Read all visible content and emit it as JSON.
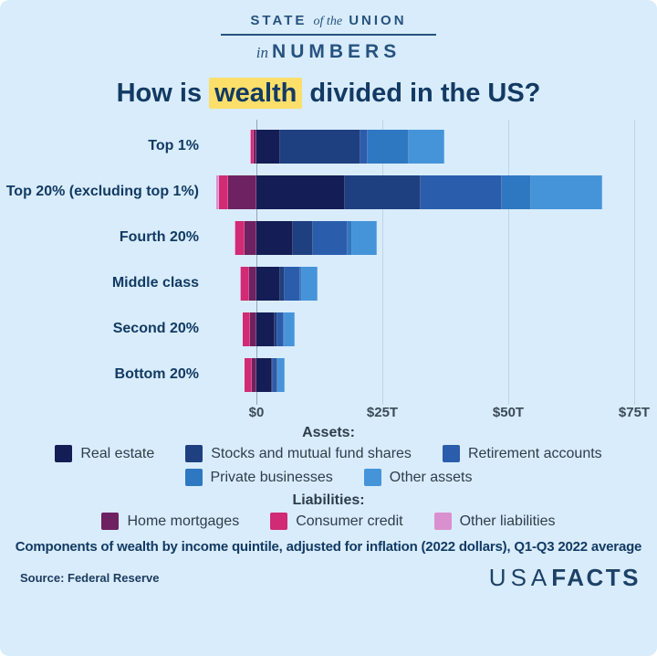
{
  "header": {
    "line1_left": "STATE",
    "line1_mid": "of the",
    "line1_right": "UNION",
    "line2_left": "in",
    "line2_right": "NUMBERS"
  },
  "title": {
    "prefix": "How is ",
    "highlight": "wealth",
    "suffix": " divided in the US?"
  },
  "legend": {
    "assets_heading": "Assets:",
    "liabilities_heading": "Liabilities:",
    "items": [
      {
        "key": "real_estate",
        "label": "Real estate"
      },
      {
        "key": "stocks",
        "label": "Stocks and mutual fund shares"
      },
      {
        "key": "retirement",
        "label": "Retirement accounts"
      },
      {
        "key": "private_businesses",
        "label": "Private businesses"
      },
      {
        "key": "other_assets",
        "label": "Other assets"
      },
      {
        "key": "home_mortgages",
        "label": "Home mortgages"
      },
      {
        "key": "consumer_credit",
        "label": "Consumer credit"
      },
      {
        "key": "other_liabilities",
        "label": "Other liabilities"
      }
    ]
  },
  "colors": {
    "background": "#d8ecfb",
    "header_navy": "#27527f",
    "title_navy": "#123a63",
    "highlight_yellow": "#fbdf6a",
    "real_estate": "#141d55",
    "stocks": "#1e3f80",
    "retirement": "#2b5dad",
    "private_businesses": "#2e78c2",
    "other_assets": "#4594da",
    "home_mortgages": "#6e2261",
    "consumer_credit": "#d02b74",
    "other_liabilities": "#da90cf"
  },
  "caption": "Components of wealth by income quintile, adjusted for inflation (2022 dollars), Q1-Q3 2022 average",
  "source": "Source: Federal Reserve",
  "logo": {
    "usa": "USA",
    "facts": "FACTS"
  },
  "chart_data": {
    "type": "bar",
    "subtype": "horizontal_stacked_diverging",
    "title": "How is wealth divided in the US?",
    "unit": "trillions of 2022 dollars",
    "x_ticks": [
      "$0",
      "$25T",
      "$50T",
      "$75T"
    ],
    "x_tick_values": [
      0,
      25,
      50,
      75
    ],
    "xlim": [
      -9,
      79
    ],
    "grid": true,
    "legend_position": "bottom",
    "categories": [
      "Top 1%",
      "Top 20% (excluding top 1%)",
      "Fourth 20%",
      "Middle class",
      "Second 20%",
      "Bottom 20%"
    ],
    "asset_series_order": [
      "real_estate",
      "stocks",
      "retirement",
      "private_businesses",
      "other_assets"
    ],
    "liability_series_order": [
      "home_mortgages",
      "consumer_credit",
      "other_liabilities"
    ],
    "rows": [
      {
        "label": "Top 1%",
        "assets": {
          "real_estate": 4.8,
          "stocks": 15.8,
          "retirement": 1.5,
          "private_businesses": 8.2,
          "other_assets": 7.1
        },
        "liabilities": {
          "home_mortgages": 0.5,
          "consumer_credit": 0.5,
          "other_liabilities": 0.2
        }
      },
      {
        "label": "Top 20% (excluding top 1%)",
        "assets": {
          "real_estate": 17.5,
          "stocks": 15.2,
          "retirement": 16.0,
          "private_businesses": 5.8,
          "other_assets": 14.2
        },
        "liabilities": {
          "home_mortgages": 5.7,
          "consumer_credit": 1.8,
          "other_liabilities": 0.5
        }
      },
      {
        "label": "Fourth 20%",
        "assets": {
          "real_estate": 7.3,
          "stocks": 3.9,
          "retirement": 7.0,
          "private_businesses": 0.9,
          "other_assets": 4.8
        },
        "liabilities": {
          "home_mortgages": 2.4,
          "consumer_credit": 1.8,
          "other_liabilities": 0.2
        }
      },
      {
        "label": "Middle class",
        "assets": {
          "real_estate": 4.8,
          "stocks": 0.9,
          "retirement": 3.0,
          "private_businesses": 0.4,
          "other_assets": 3.0
        },
        "liabilities": {
          "home_mortgages": 1.4,
          "consumer_credit": 1.7,
          "other_liabilities": 0.1
        }
      },
      {
        "label": "Second 20%",
        "assets": {
          "real_estate": 3.6,
          "stocks": 0.5,
          "retirement": 1.4,
          "private_businesses": 0.2,
          "other_assets": 1.9
        },
        "liabilities": {
          "home_mortgages": 1.2,
          "consumer_credit": 1.5,
          "other_liabilities": 0.1
        }
      },
      {
        "label": "Bottom 20%",
        "assets": {
          "real_estate": 3.0,
          "stocks": 0.3,
          "retirement": 0.9,
          "private_businesses": 0.1,
          "other_assets": 1.3
        },
        "liabilities": {
          "home_mortgages": 0.9,
          "consumer_credit": 1.4,
          "other_liabilities": 0.1
        }
      }
    ]
  }
}
